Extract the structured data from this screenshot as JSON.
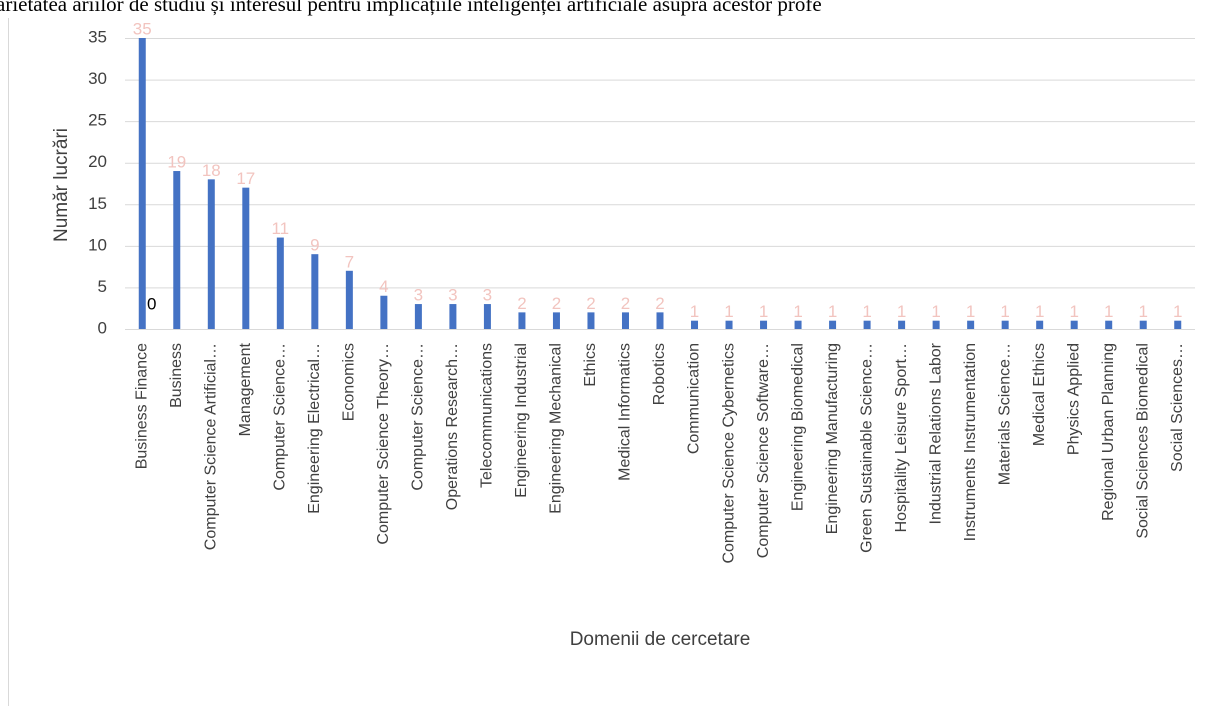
{
  "chart_data": {
    "type": "bar",
    "title": "arietatea ariilor de studiu și interesul pentru implicațiile inteligenței artificiale asupra acestor profe",
    "xlabel": "Domenii de cercetare",
    "ylabel": "Număr lucrări",
    "annotation": "0",
    "categories": [
      "Business Finance",
      "Business",
      "Computer Science Artificial…",
      "Management",
      "Computer Science…",
      "Engineering Electrical…",
      "Economics",
      "Computer Science Theory…",
      "Computer Science…",
      "Operations Research…",
      "Telecommunications",
      "Engineering Industrial",
      "Engineering Mechanical",
      "Ethics",
      "Medical Informatics",
      "Robotics",
      "Communication",
      "Computer Science Cybernetics",
      "Computer Science Software…",
      "Engineering Biomedical",
      "Engineering Manufacturing",
      "Green Sustainable Science…",
      "Hospitality Leisure Sport…",
      "Industrial Relations Labor",
      "Instruments Instrumentation",
      "Materials Science…",
      "Medical Ethics",
      "Physics Applied",
      "Regional Urban Planning",
      "Social Sciences Biomedical",
      "Social Sciences…"
    ],
    "values": [
      35,
      19,
      18,
      17,
      11,
      9,
      7,
      4,
      3,
      3,
      3,
      2,
      2,
      2,
      2,
      2,
      1,
      1,
      1,
      1,
      1,
      1,
      1,
      1,
      1,
      1,
      1,
      1,
      1,
      1,
      1
    ],
    "color": "#4472c4",
    "ylim": [
      0,
      35
    ],
    "yticks": [
      0,
      5,
      10,
      15,
      20,
      25,
      30,
      35
    ],
    "grid": true
  }
}
